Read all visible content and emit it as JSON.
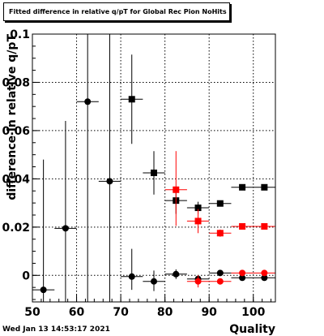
{
  "footer": {
    "timestamp": "Wed Jan 13 14:53:17 2021"
  },
  "chart_data": {
    "type": "scatter",
    "title": "Fitted difference in relative q/pT for Global Rec Pion NoHits",
    "xlabel": "Quality",
    "ylabel": "difference in relative q/pT",
    "xlim": [
      50,
      105
    ],
    "ylim": [
      -0.011,
      0.1
    ],
    "x_ticks": [
      50,
      60,
      70,
      80,
      90,
      100
    ],
    "y_ticks": [
      0,
      0.02,
      0.04,
      0.06,
      0.08,
      0.1
    ],
    "y_tick_labels": [
      "0",
      "0.02",
      "0.04",
      "0.06",
      "0.08",
      "0.1"
    ],
    "grid": true,
    "series": [
      {
        "marker": "circle",
        "color": "#000000",
        "points": [
          {
            "x": 52.5,
            "y": -0.006,
            "xerr": 2.5,
            "ylo": -0.011,
            "yhi": 0.048
          },
          {
            "x": 57.5,
            "y": 0.0195,
            "xerr": 2.5,
            "ylo": -0.011,
            "yhi": 0.064
          },
          {
            "x": 62.5,
            "y": 0.072,
            "xerr": 2.5,
            "ylo": -0.011,
            "yhi": 0.1
          },
          {
            "x": 67.5,
            "y": 0.039,
            "xerr": 2.5,
            "ylo": -0.011,
            "yhi": 0.1
          },
          {
            "x": 72.5,
            "y": -0.0005,
            "xerr": 2.5,
            "ylo": -0.006,
            "yhi": 0.011
          },
          {
            "x": 77.5,
            "y": -0.0025,
            "xerr": 2.5,
            "ylo": -0.0065,
            "yhi": 0.002
          },
          {
            "x": 82.5,
            "y": 0.0005,
            "xerr": 2.5,
            "ylo": -0.0015,
            "yhi": 0.0025
          },
          {
            "x": 87.5,
            "y": -0.0015,
            "xerr": 2.5,
            "ylo": -0.003,
            "yhi": 0.0
          },
          {
            "x": 92.5,
            "y": 0.001,
            "xerr": 2.5,
            "ylo": 0.0005,
            "yhi": 0.0015
          },
          {
            "x": 97.5,
            "y": -0.001,
            "xerr": 2.5,
            "ylo": -0.0012,
            "yhi": -0.0008
          },
          {
            "x": 102.5,
            "y": -0.001,
            "xerr": 2.5,
            "ylo": -0.0012,
            "yhi": -0.0008
          }
        ]
      },
      {
        "marker": "square",
        "color": "#000000",
        "points": [
          {
            "x": 72.5,
            "y": 0.073,
            "xerr": 2.5,
            "ylo": 0.0545,
            "yhi": 0.0915
          },
          {
            "x": 77.5,
            "y": 0.0425,
            "xerr": 2.5,
            "ylo": 0.0335,
            "yhi": 0.0515
          },
          {
            "x": 82.5,
            "y": 0.031,
            "xerr": 2.5,
            "ylo": 0.0255,
            "yhi": 0.0365
          },
          {
            "x": 87.5,
            "y": 0.028,
            "xerr": 2.5,
            "ylo": 0.0255,
            "yhi": 0.0305
          },
          {
            "x": 92.5,
            "y": 0.0298,
            "xerr": 2.5,
            "ylo": 0.029,
            "yhi": 0.0306
          },
          {
            "x": 97.5,
            "y": 0.0365,
            "xerr": 2.5,
            "ylo": 0.036,
            "yhi": 0.037
          },
          {
            "x": 102.5,
            "y": 0.0365,
            "xerr": 2.5,
            "ylo": 0.036,
            "yhi": 0.037
          }
        ]
      },
      {
        "marker": "square",
        "color": "#ff0000",
        "points": [
          {
            "x": 82.5,
            "y": 0.0355,
            "xerr": 2.5,
            "ylo": 0.0205,
            "yhi": 0.0515
          },
          {
            "x": 87.5,
            "y": 0.0225,
            "xerr": 2.5,
            "ylo": 0.0175,
            "yhi": 0.0275
          },
          {
            "x": 92.5,
            "y": 0.0175,
            "xerr": 2.5,
            "ylo": 0.016,
            "yhi": 0.019
          },
          {
            "x": 97.5,
            "y": 0.0203,
            "xerr": 2.5,
            "ylo": 0.0198,
            "yhi": 0.0208
          },
          {
            "x": 102.5,
            "y": 0.0203,
            "xerr": 2.5,
            "ylo": 0.0198,
            "yhi": 0.0208
          }
        ]
      },
      {
        "marker": "circle",
        "color": "#ff0000",
        "points": [
          {
            "x": 87.5,
            "y": -0.0025,
            "xerr": 2.5,
            "ylo": -0.005,
            "yhi": 0.0
          },
          {
            "x": 92.5,
            "y": -0.0025,
            "xerr": 2.5,
            "ylo": -0.0035,
            "yhi": -0.0015
          },
          {
            "x": 97.5,
            "y": 0.001,
            "xerr": 2.5,
            "ylo": 0.0005,
            "yhi": 0.0015
          },
          {
            "x": 102.5,
            "y": 0.001,
            "xerr": 2.5,
            "ylo": 0.0005,
            "yhi": 0.0015
          }
        ]
      }
    ]
  }
}
